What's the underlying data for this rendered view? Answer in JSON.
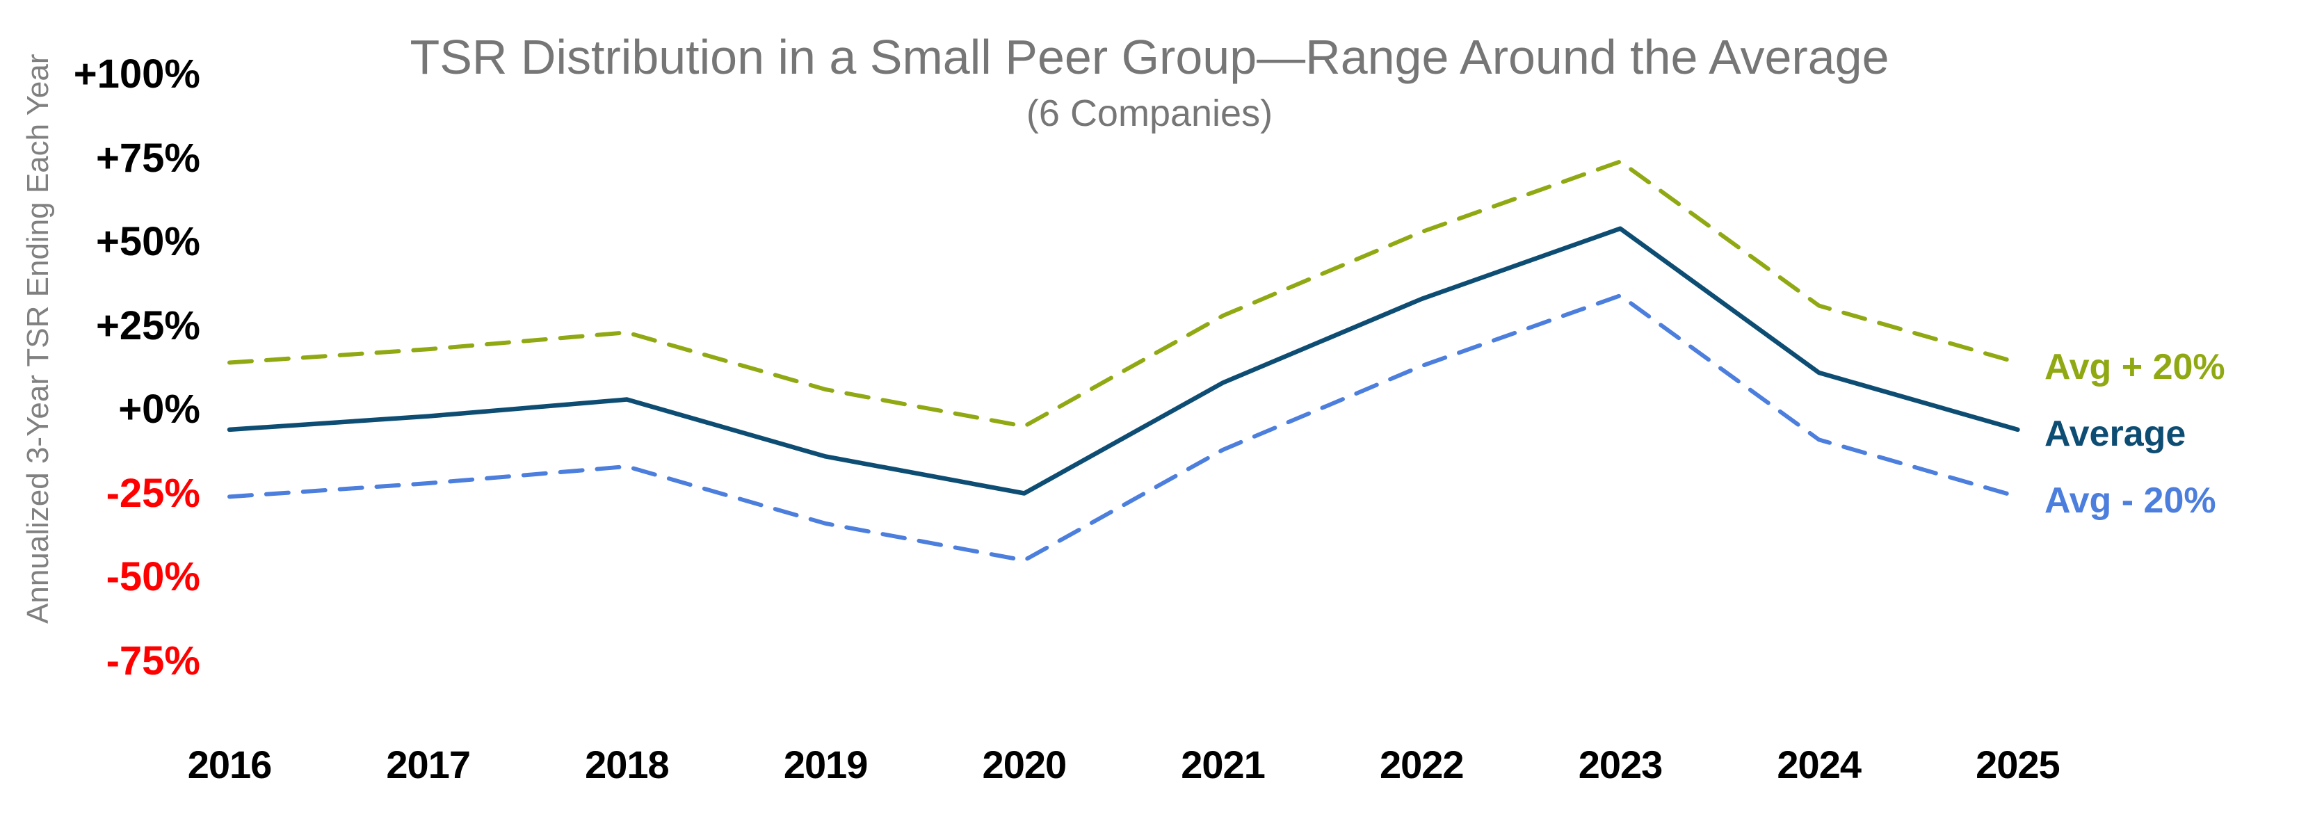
{
  "title": "TSR Distribution in a Small Peer Group—Range Around the Average",
  "subtitle": "(6 Companies)",
  "y_axis_title": "Annualized 3-Year TSR Ending Each Year",
  "colors": {
    "avg_plus_20": "#90A912",
    "average": "#0E4D73",
    "avg_minus_20": "#4C7EDD",
    "title_gray": "#767676",
    "axis_title_gray": "#808080",
    "positive_tick": "#000000",
    "negative_tick": "#FF0000"
  },
  "y_ticks": [
    {
      "label": "+100%",
      "value": 100
    },
    {
      "label": "+75%",
      "value": 75
    },
    {
      "label": "+50%",
      "value": 50
    },
    {
      "label": "+25%",
      "value": 25
    },
    {
      "label": "+0%",
      "value": 0
    },
    {
      "label": "-25%",
      "value": -25
    },
    {
      "label": "-50%",
      "value": -50
    },
    {
      "label": "-75%",
      "value": -75
    }
  ],
  "chart_data": {
    "type": "line",
    "x": [
      "2016",
      "2017",
      "2018",
      "2019",
      "2020",
      "2021",
      "2022",
      "2023",
      "2024",
      "2025"
    ],
    "series": [
      {
        "name": "Avg + 20%",
        "style": "dashed",
        "color_key": "avg_plus_20",
        "values": [
          14,
          18,
          23,
          6,
          -5,
          28,
          53,
          74,
          31,
          14
        ]
      },
      {
        "name": "Average",
        "style": "solid",
        "color_key": "average",
        "values": [
          -6,
          -2,
          3,
          -14,
          -25,
          8,
          33,
          54,
          11,
          -6
        ]
      },
      {
        "name": "Avg - 20%",
        "style": "dashed",
        "color_key": "avg_minus_20",
        "values": [
          -26,
          -22,
          -17,
          -34,
          -45,
          -12,
          13,
          34,
          -9,
          -26
        ]
      }
    ],
    "title": "TSR Distribution in a Small Peer Group—Range Around the Average",
    "subtitle": "(6 Companies)",
    "xlabel": "",
    "ylabel": "Annualized 3-Year TSR Ending Each Year",
    "ylim": [
      -75,
      100
    ],
    "grid": false,
    "legend_position": "right-of-line-ends"
  }
}
